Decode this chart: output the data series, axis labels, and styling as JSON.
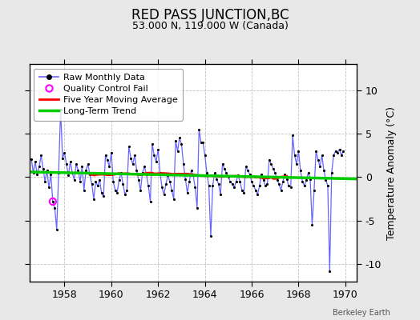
{
  "title": "RED PASS JUNCTION,BC",
  "subtitle": "53.000 N, 119.000 W (Canada)",
  "ylabel": "Temperature Anomaly (°C)",
  "watermark": "Berkeley Earth",
  "xmin": 1956.5,
  "xmax": 1970.5,
  "ymin": -12,
  "ymax": 13,
  "yticks": [
    -10,
    -5,
    0,
    5,
    10
  ],
  "xticks": [
    1958,
    1960,
    1962,
    1964,
    1966,
    1968,
    1970
  ],
  "bg_color": "#e8e8e8",
  "plot_bg_color": "#ffffff",
  "raw_color": "#6666ff",
  "dot_color": "#000000",
  "ma_color": "#ff0000",
  "trend_color": "#00cc00",
  "qc_color": "#ff00ff",
  "raw_data": [
    1956.583,
    2.1,
    1956.667,
    0.5,
    1956.75,
    1.8,
    1956.833,
    0.3,
    1956.917,
    1.2,
    1957.0,
    2.5,
    1957.083,
    1.0,
    1957.167,
    -0.5,
    1957.25,
    0.8,
    1957.333,
    -1.2,
    1957.417,
    0.3,
    1957.5,
    -2.8,
    1957.583,
    -3.5,
    1957.667,
    -6.0,
    1957.75,
    0.5,
    1957.833,
    7.8,
    1957.917,
    2.2,
    1958.0,
    2.8,
    1958.083,
    1.5,
    1958.167,
    0.2,
    1958.25,
    1.8,
    1958.333,
    0.5,
    1958.417,
    -0.3,
    1958.5,
    1.5,
    1958.583,
    0.8,
    1958.667,
    -0.5,
    1958.75,
    1.2,
    1958.833,
    -1.5,
    1958.917,
    0.8,
    1959.0,
    1.5,
    1959.083,
    0.3,
    1959.167,
    -0.8,
    1959.25,
    -2.5,
    1959.333,
    -0.5,
    1959.417,
    -1.0,
    1959.5,
    -0.3,
    1959.583,
    -1.8,
    1959.667,
    -2.2,
    1959.75,
    2.5,
    1959.833,
    2.0,
    1959.917,
    1.2,
    1960.0,
    2.8,
    1960.083,
    -0.5,
    1960.167,
    -1.5,
    1960.25,
    -1.8,
    1960.333,
    -0.3,
    1960.417,
    0.5,
    1960.5,
    -0.8,
    1960.583,
    -2.0,
    1960.667,
    -1.5,
    1960.75,
    3.5,
    1960.833,
    2.2,
    1960.917,
    1.5,
    1961.0,
    2.5,
    1961.083,
    0.8,
    1961.167,
    -0.3,
    1961.25,
    -1.5,
    1961.333,
    0.5,
    1961.417,
    1.2,
    1961.5,
    0.3,
    1961.583,
    -1.0,
    1961.667,
    -2.8,
    1961.75,
    3.8,
    1961.833,
    2.5,
    1961.917,
    1.8,
    1962.0,
    3.2,
    1962.083,
    0.5,
    1962.167,
    -1.2,
    1962.25,
    -2.0,
    1962.333,
    -0.8,
    1962.417,
    0.2,
    1962.5,
    -0.5,
    1962.583,
    -1.5,
    1962.667,
    -2.5,
    1962.75,
    4.2,
    1962.833,
    3.0,
    1962.917,
    4.5,
    1963.0,
    3.8,
    1963.083,
    1.5,
    1963.167,
    -0.2,
    1963.25,
    -1.8,
    1963.333,
    -0.5,
    1963.417,
    0.8,
    1963.5,
    0.2,
    1963.583,
    -1.2,
    1963.667,
    -3.5,
    1963.75,
    5.5,
    1963.833,
    4.0,
    1963.917,
    4.0,
    1964.0,
    2.5,
    1964.083,
    0.5,
    1964.167,
    -1.0,
    1964.25,
    -6.8,
    1964.333,
    -1.0,
    1964.417,
    0.5,
    1964.5,
    -0.2,
    1964.583,
    -0.8,
    1964.667,
    -2.0,
    1964.75,
    1.5,
    1964.833,
    1.0,
    1964.917,
    0.5,
    1965.0,
    0.0,
    1965.083,
    -0.5,
    1965.167,
    -0.8,
    1965.25,
    -1.2,
    1965.333,
    -0.5,
    1965.417,
    0.2,
    1965.5,
    -0.5,
    1965.583,
    -1.5,
    1965.667,
    -1.8,
    1965.75,
    1.2,
    1965.833,
    0.8,
    1965.917,
    0.3,
    1966.0,
    -0.5,
    1966.083,
    -1.0,
    1966.167,
    -1.5,
    1966.25,
    -2.0,
    1966.333,
    -1.0,
    1966.417,
    0.3,
    1966.5,
    -0.3,
    1966.583,
    -1.0,
    1966.667,
    -0.8,
    1966.75,
    2.0,
    1966.833,
    1.5,
    1966.917,
    1.0,
    1967.0,
    0.5,
    1967.083,
    -0.3,
    1967.167,
    -0.8,
    1967.25,
    -1.5,
    1967.333,
    -0.5,
    1967.417,
    0.3,
    1967.5,
    -0.2,
    1967.583,
    -1.0,
    1967.667,
    -1.2,
    1967.75,
    4.8,
    1967.833,
    2.5,
    1967.917,
    1.5,
    1968.0,
    3.0,
    1968.083,
    0.8,
    1968.167,
    -0.5,
    1968.25,
    -1.0,
    1968.333,
    -0.3,
    1968.417,
    0.5,
    1968.5,
    -0.2,
    1968.583,
    -5.5,
    1968.667,
    -1.5,
    1968.75,
    3.0,
    1968.833,
    2.0,
    1968.917,
    1.2,
    1969.0,
    2.5,
    1969.083,
    0.8,
    1969.167,
    -0.3,
    1969.25,
    -1.0,
    1969.333,
    -10.8,
    1969.417,
    0.5,
    1969.5,
    2.5,
    1969.583,
    3.0,
    1969.667,
    2.8,
    1969.75,
    3.2,
    1969.833,
    2.5,
    1969.917,
    3.0
  ],
  "qc_fail_x": [
    1957.5
  ],
  "qc_fail_y": [
    -2.8
  ],
  "trend_x": [
    1956.5,
    1970.5
  ],
  "trend_y": [
    0.6,
    -0.2
  ],
  "legend_labels": [
    "Raw Monthly Data",
    "Quality Control Fail",
    "Five Year Moving Average",
    "Long-Term Trend"
  ]
}
